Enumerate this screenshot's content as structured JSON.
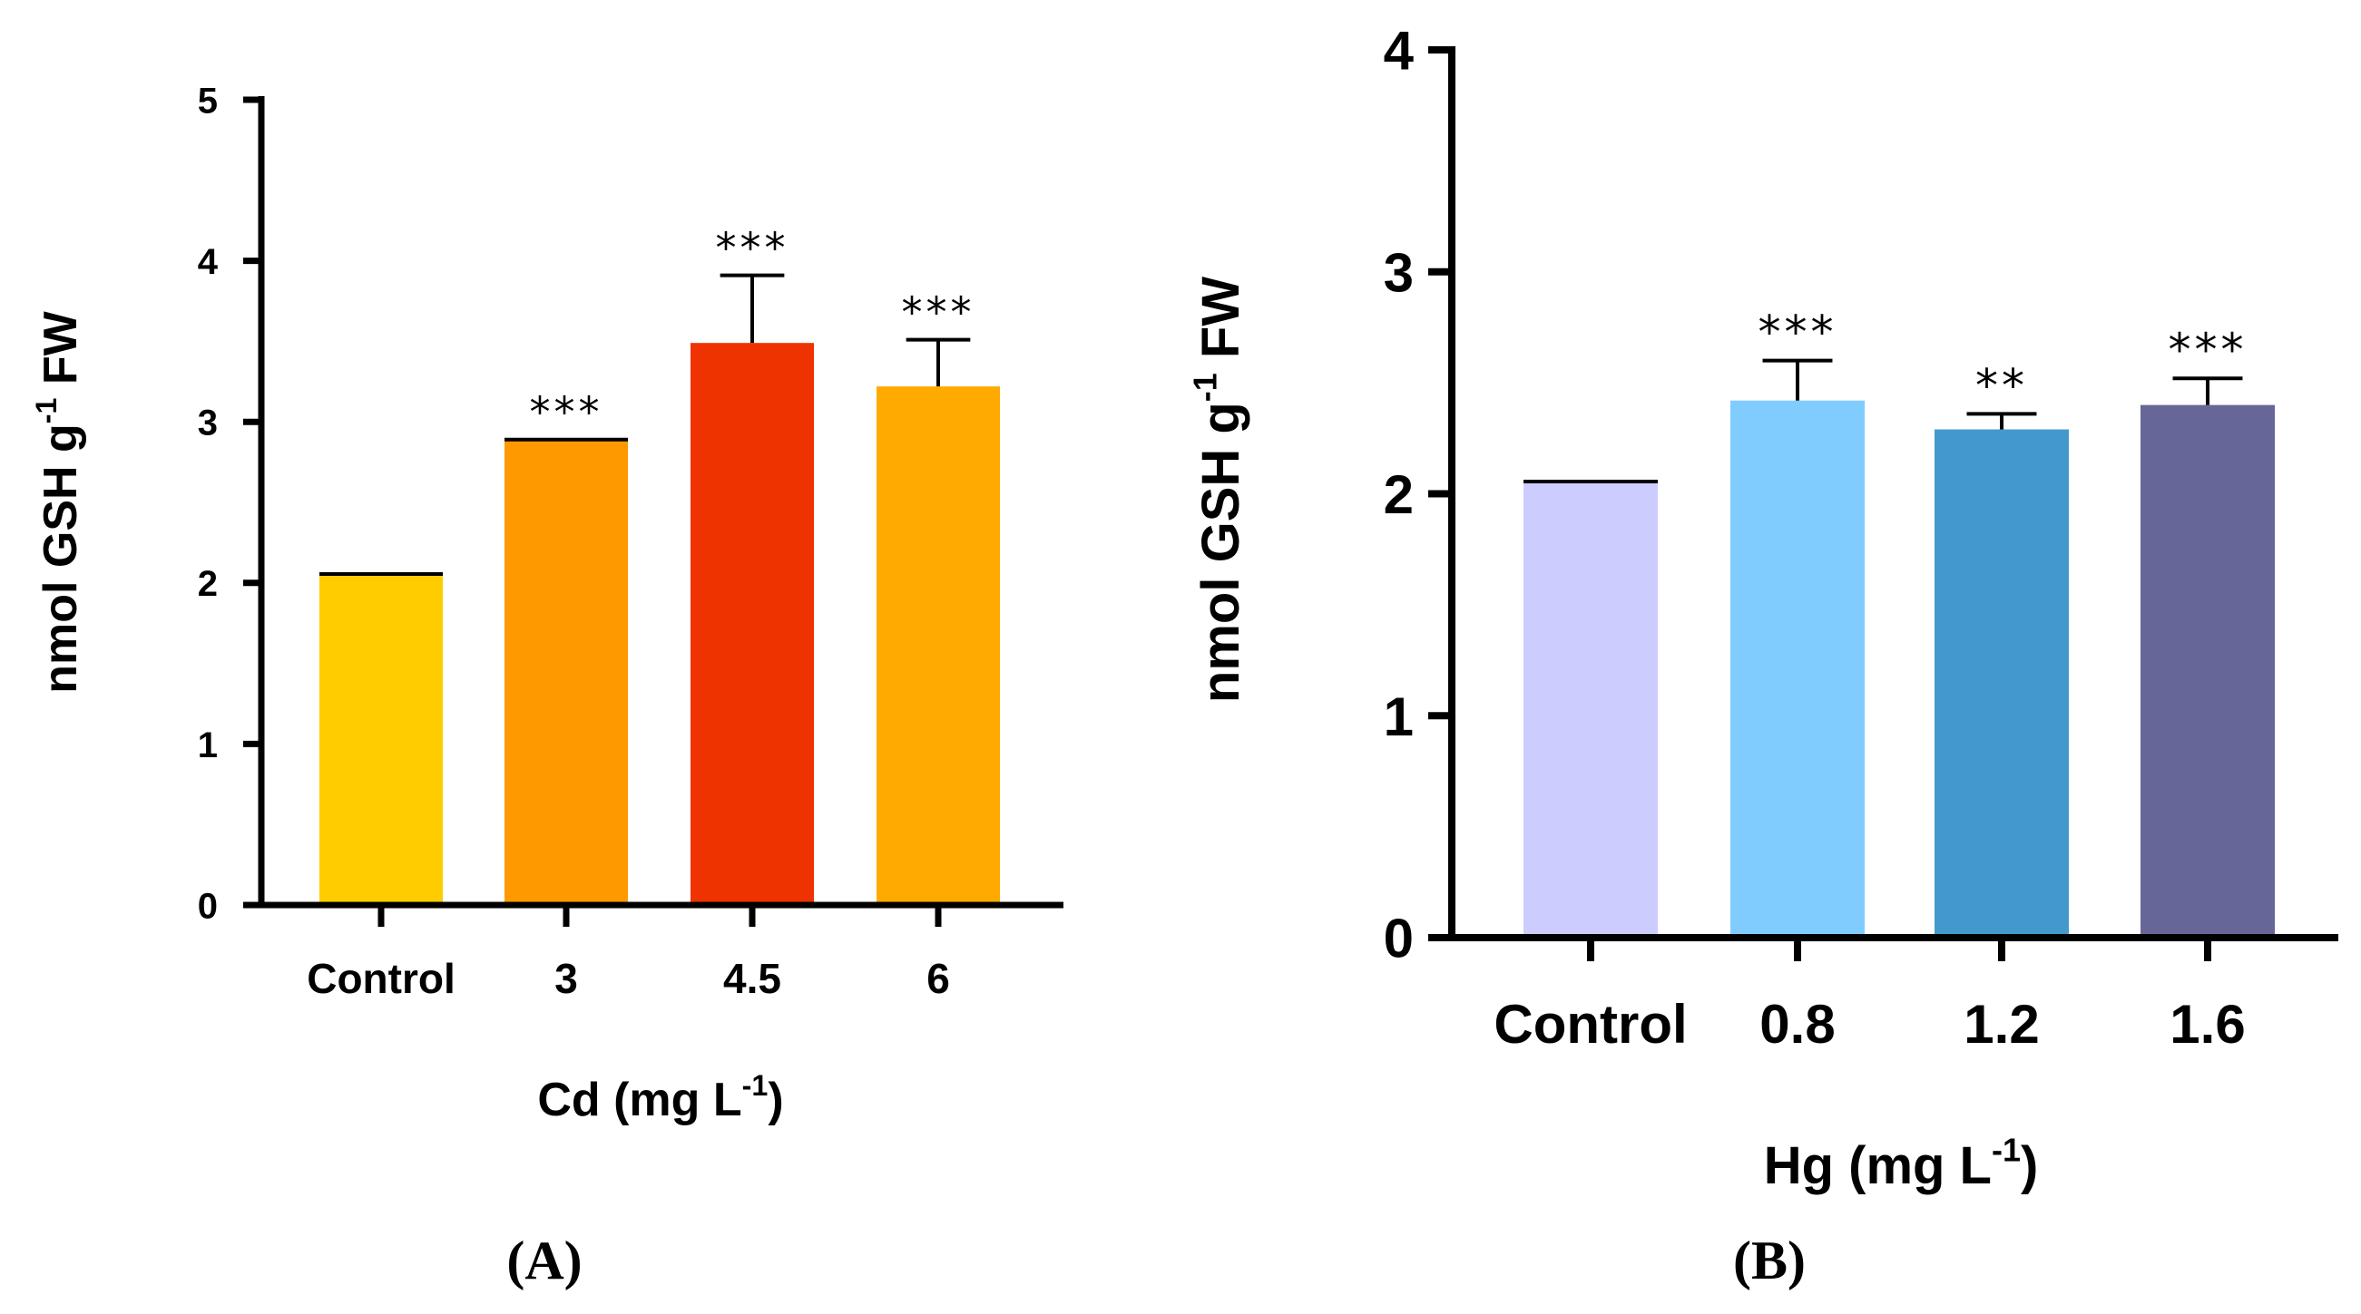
{
  "chart_data": [
    {
      "type": "bar",
      "panel_label": "(A)",
      "categories": [
        "Control",
        "3",
        "4.5",
        "6"
      ],
      "values": [
        2.05,
        2.88,
        3.49,
        3.22
      ],
      "errors": [
        0.005,
        0.01,
        0.42,
        0.29
      ],
      "significance": [
        "",
        "***",
        "***",
        "***"
      ],
      "colors": [
        "#ffcc00",
        "#ff9900",
        "#ee3300",
        "#ffaa00"
      ],
      "xlabel": {
        "main": "Cd (mg L",
        "sup": "-1",
        "end": ")"
      },
      "ylabel": {
        "main": "nmol GSH g",
        "sup": "-1",
        "end": " FW"
      },
      "ylim": [
        0,
        5
      ],
      "yticks": [
        0,
        1,
        2,
        3,
        4,
        5
      ],
      "ytick_labels": [
        "0",
        "1",
        "2",
        "3",
        "4",
        "5"
      ],
      "grid": false,
      "legend": "none"
    },
    {
      "type": "bar",
      "panel_label": "(B)",
      "categories": [
        "Control",
        "0.8",
        "1.2",
        "1.6"
      ],
      "values": [
        2.05,
        2.42,
        2.29,
        2.4
      ],
      "errors": [
        0.005,
        0.18,
        0.07,
        0.12
      ],
      "significance": [
        "",
        "***",
        "**",
        "***"
      ],
      "colors": [
        "#ccccff",
        "#80ccff",
        "#4499cc",
        "#666699"
      ],
      "xlabel": {
        "main": "Hg (mg L",
        "sup": "-1",
        "end": ")"
      },
      "ylabel": {
        "main": "nmol GSH g",
        "sup": "-1",
        "end": " FW"
      },
      "ylim": [
        0,
        4
      ],
      "yticks": [
        0,
        1,
        2,
        3,
        4
      ],
      "ytick_labels": [
        "0",
        "1",
        "2",
        "3",
        "4"
      ],
      "grid": false,
      "legend": "none"
    }
  ]
}
